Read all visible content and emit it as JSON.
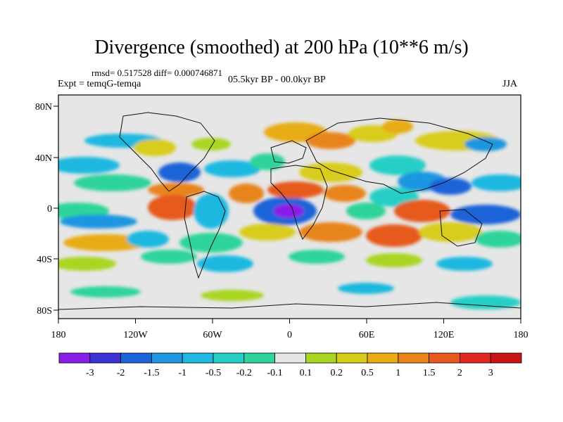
{
  "title": "Divergence (smoothed) at 200 hPa (10**6 m/s)",
  "stats": {
    "rmsd_label": "rmsd=",
    "rmsd": "0.517528",
    "diff_label": "diff=",
    "diff": "0.000746871"
  },
  "expt_label": "Expt = temqG-temqa",
  "period": "05.5kyr BP - 00.0kyr BP",
  "season": "JJA",
  "axes": {
    "lon_ticks": [
      "180",
      "120W",
      "60W",
      "0",
      "60E",
      "120E",
      "180"
    ],
    "lat_ticks": [
      "80N",
      "40N",
      "0",
      "40S",
      "80S"
    ]
  },
  "colorbar": {
    "labels": [
      "-3",
      "-2",
      "-1.5",
      "-1",
      "-0.5",
      "-0.2",
      "-0.1",
      "0.1",
      "0.2",
      "0.5",
      "1",
      "1.5",
      "2",
      "3"
    ],
    "colors": [
      "#8a1ee8",
      "#3b32d6",
      "#1c64d8",
      "#1e96e0",
      "#1fb8e0",
      "#26cfc5",
      "#2fd49a",
      "#e6e6e6",
      "#a8d622",
      "#d8cc1a",
      "#e8ac14",
      "#e8841a",
      "#e65a1e",
      "#e02a1e",
      "#c81414"
    ]
  },
  "colors": {
    "background": "#e6e6e6",
    "coast": "#111111"
  }
}
